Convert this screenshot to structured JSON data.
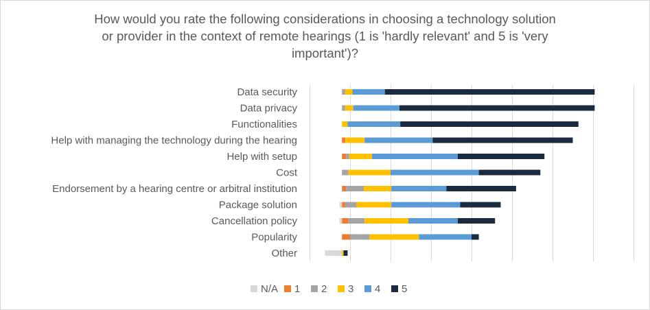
{
  "chart_data": {
    "type": "bar",
    "orientation": "horizontal",
    "stacked": "diverging",
    "title_lines": [
      "How would you rate the following considerations in choosing a technology solution",
      "or provider in the context of remote hearings (1 is 'hardly relevant' and 5 is 'very",
      "important')?"
    ],
    "categories": [
      "Data security",
      "Data privacy",
      "Functionalities",
      "Help with managing the technology during the hearing",
      "Help with setup",
      "Cost",
      "Endorsement by a hearing centre or arbitral institution",
      "Package solution",
      "Cancellation policy",
      "Popularity",
      "Other"
    ],
    "series": [
      {
        "name": "N/A",
        "color": "#d9d9d9",
        "values": [
          0,
          0,
          0,
          0,
          0,
          0,
          0,
          0.3,
          0.3,
          0,
          2.1
        ]
      },
      {
        "name": "1",
        "color": "#ed7d31",
        "values": [
          0,
          0,
          0,
          0.4,
          0.5,
          0,
          0.5,
          0.4,
          0.8,
          1.0,
          0
        ]
      },
      {
        "name": "2",
        "color": "#a5a5a5",
        "values": [
          0.4,
          0.4,
          0,
          0,
          0.4,
          0.8,
          2.2,
          1.4,
          2.0,
          2.4,
          0
        ]
      },
      {
        "name": "3",
        "color": "#ffc000",
        "values": [
          0.9,
          1.0,
          0.7,
          2.4,
          2.8,
          5.2,
          3.4,
          4.3,
          5.4,
          6.1,
          0.2
        ]
      },
      {
        "name": "4",
        "color": "#5b9bd5",
        "values": [
          4.0,
          5.7,
          6.5,
          8.4,
          10.6,
          10.9,
          6.8,
          8.5,
          6.1,
          6.5,
          0
        ]
      },
      {
        "name": "5",
        "color": "#1a2b3f",
        "values": [
          25.9,
          24.1,
          22.0,
          17.3,
          10.7,
          7.6,
          8.6,
          5.0,
          4.6,
          0.9,
          0.5
        ]
      }
    ],
    "xlim": [
      -4,
      36
    ],
    "x_gridline_spacing": 5,
    "grid": true,
    "legend_position": "bottom",
    "axis_tick_labels_shown": false
  }
}
